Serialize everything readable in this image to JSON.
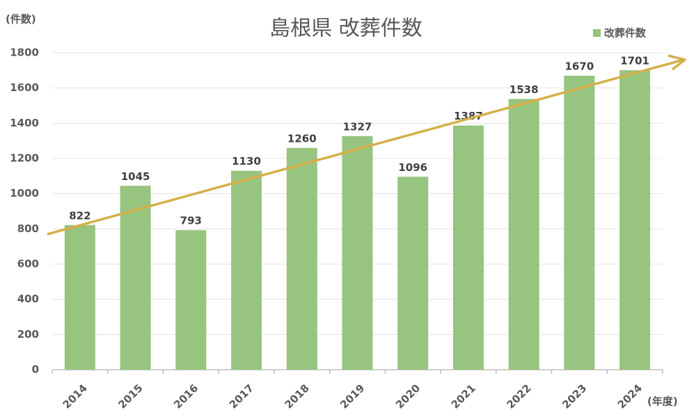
{
  "chart_data": {
    "type": "bar",
    "title": "島根県 改葬件数",
    "y_label": "(件数)",
    "x_label": "(年度)",
    "categories": [
      "2014",
      "2015",
      "2016",
      "2017",
      "2018",
      "2019",
      "2020",
      "2021",
      "2022",
      "2023",
      "2024"
    ],
    "series": [
      {
        "name": "改葬件数",
        "color": "#97c47e",
        "values": [
          822,
          1045,
          793,
          1130,
          1260,
          1327,
          1096,
          1387,
          1538,
          1670,
          1701
        ]
      }
    ],
    "ylim": [
      0,
      1800
    ],
    "yticks": [
      0,
      200,
      400,
      600,
      800,
      1000,
      1200,
      1400,
      1600,
      1800
    ],
    "grid": true
  }
}
